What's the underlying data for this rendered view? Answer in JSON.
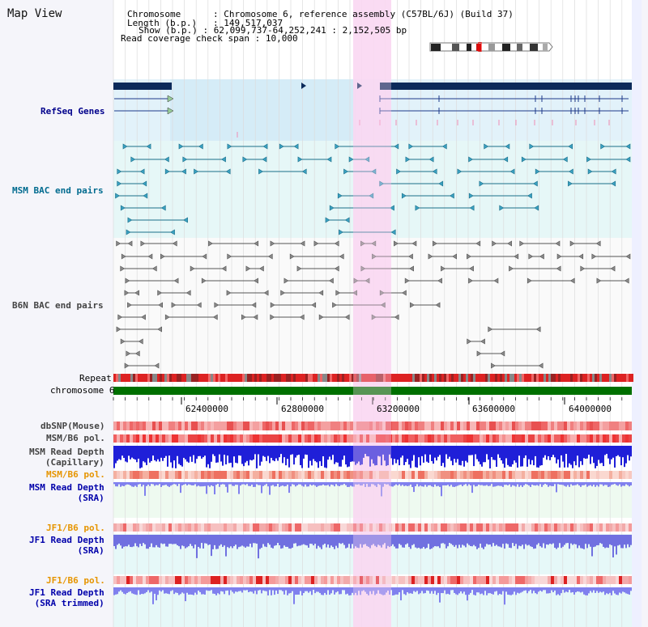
{
  "view": {
    "title": "Map View",
    "info": {
      "chromosome_key": "Chromosome",
      "chromosome_val": "Chromosome 6, reference assembly (C57BL/6J) (Build 37)",
      "length_key": "Length (b.p.)",
      "length_val": "149,517,037",
      "show_key": "Show (b.p.)",
      "show_val": "62,099,737-64,252,241 : 2,152,505 bp",
      "span_key": "Read coverage check span",
      "span_val": "10,000"
    }
  },
  "tracks": {
    "refseq": {
      "label": "RefSeq Genes"
    },
    "msm_bac": {
      "label": "MSM BAC end pairs"
    },
    "b6n_bac": {
      "label": "B6N BAC end pairs"
    },
    "repeat": {
      "label": "Repeat"
    },
    "chromosome": {
      "label": "chromosome 6"
    },
    "dbsnp": {
      "label": "dbSNP(Mouse)"
    },
    "msm_b6_pol_1": {
      "label": "MSM/B6 pol."
    },
    "msm_depth_cap": {
      "label1": "MSM Read Depth",
      "label2": "(Capillary)"
    },
    "msm_b6_pol_2": {
      "label": "MSM/B6 pol."
    },
    "msm_depth_sra": {
      "label1": "MSM Read Depth",
      "label2": "(SRA)"
    },
    "jf1_b6_pol_1": {
      "label": "JF1/B6 pol."
    },
    "jf1_depth_sra": {
      "label1": "JF1 Read Depth",
      "label2": "(SRA)"
    },
    "jf1_b6_pol_2": {
      "label": "JF1/B6 pol."
    },
    "jf1_depth_trim": {
      "label1": "JF1 Read Depth",
      "label2": "(SRA trimmed)"
    }
  },
  "axis": {
    "ticks": [
      "62400000",
      "62800000",
      "63200000",
      "63600000",
      "64000000"
    ]
  },
  "colors": {
    "refseq_label": "#00008b",
    "msm_label": "#006b8f",
    "b6n_label": "#444444",
    "pol_orange": "#e69500",
    "depth_blue": "#0000aa",
    "highlight": "#f9d8f2",
    "chromosome_bar": "#007000"
  }
}
